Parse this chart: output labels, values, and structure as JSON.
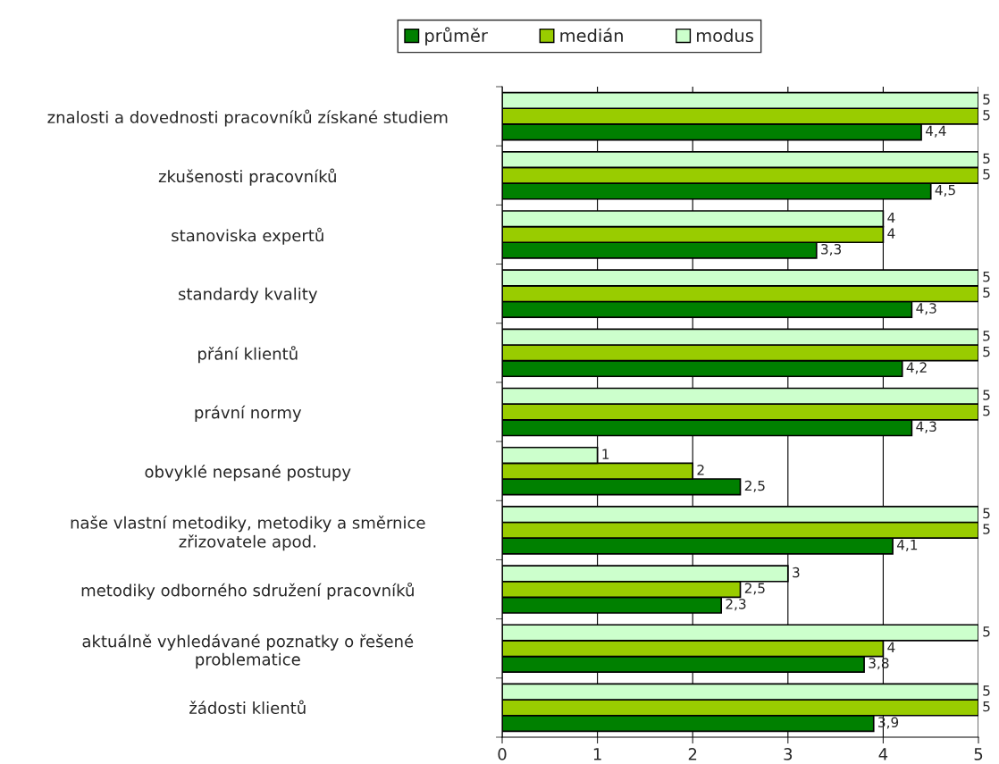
{
  "chart_data": {
    "type": "bar",
    "orientation": "horizontal",
    "categories": [
      "znalosti a dovednosti pracovníků získané studiem",
      "zkušenosti pracovníků",
      "stanoviska expertů",
      "standardy kvality",
      "přání klientů",
      "právní normy",
      "obvyklé nepsané postupy",
      "naše vlastní metodiky, metodiky a směrnice\nzřizovatele apod.",
      "metodiky odborného sdružení pracovníků",
      "aktuálně vyhledávané poznatky o řešené\nproblematice",
      "žádosti klientů"
    ],
    "series": [
      {
        "name": "průměr",
        "color": "#008000",
        "values": [
          4.4,
          4.5,
          3.3,
          4.3,
          4.2,
          4.3,
          2.5,
          4.1,
          2.3,
          3.8,
          3.9
        ],
        "value_labels": [
          "4,4",
          "4,5",
          "3,3",
          "4,3",
          "4,2",
          "4,3",
          "2,5",
          "4,1",
          "2,3",
          "3,8",
          "3,9"
        ]
      },
      {
        "name": "medián",
        "color": "#99cc00",
        "values": [
          5,
          5,
          4,
          5,
          5,
          5,
          2,
          5,
          2.5,
          4,
          5
        ],
        "value_labels": [
          "5",
          "5",
          "4",
          "5",
          "5",
          "5",
          "2",
          "5",
          "2,5",
          "4",
          "5"
        ]
      },
      {
        "name": "modus",
        "color": "#ccffcc",
        "values": [
          5,
          5,
          4,
          5,
          5,
          5,
          1,
          5,
          3,
          5,
          5
        ],
        "value_labels": [
          "5",
          "5",
          "4",
          "5",
          "5",
          "5",
          "1",
          "5",
          "3",
          "5",
          "5"
        ]
      }
    ],
    "xlim": [
      0,
      5
    ],
    "xticks": [
      0,
      1,
      2,
      3,
      4,
      5
    ],
    "grid": "x",
    "legend": "top"
  }
}
